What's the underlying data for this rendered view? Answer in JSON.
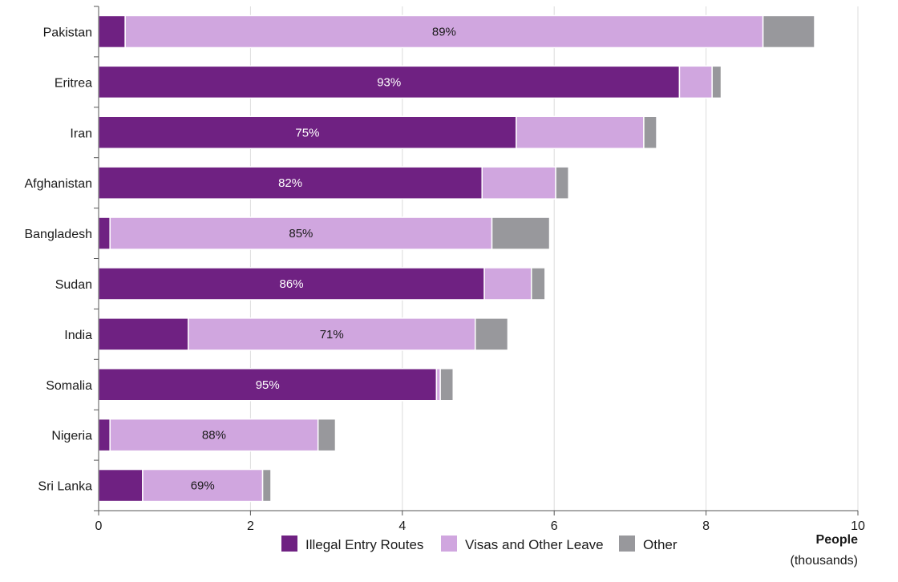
{
  "chart_data": {
    "type": "bar",
    "orientation": "horizontal",
    "stacked": true,
    "categories": [
      "Pakistan",
      "Eritrea",
      "Iran",
      "Afghanistan",
      "Bangladesh",
      "Sudan",
      "India",
      "Somalia",
      "Nigeria",
      "Sri Lanka"
    ],
    "series": [
      {
        "name": "Illegal Entry Routes",
        "color": "#6f2182",
        "values": [
          0.35,
          7.65,
          5.5,
          5.05,
          0.15,
          5.08,
          1.18,
          4.45,
          0.15,
          0.58
        ]
      },
      {
        "name": "Visas and Other Leave",
        "color": "#d0a6df",
        "values": [
          8.4,
          0.43,
          1.68,
          0.97,
          5.03,
          0.62,
          3.78,
          0.05,
          2.74,
          1.58
        ]
      },
      {
        "name": "Other",
        "color": "#98989c",
        "values": [
          0.68,
          0.12,
          0.17,
          0.17,
          0.76,
          0.18,
          0.43,
          0.17,
          0.23,
          0.11
        ]
      }
    ],
    "data_labels": [
      {
        "category": "Pakistan",
        "series": "Visas and Other Leave",
        "text": "89%"
      },
      {
        "category": "Eritrea",
        "series": "Illegal Entry Routes",
        "text": "93%"
      },
      {
        "category": "Iran",
        "series": "Illegal Entry Routes",
        "text": "75%"
      },
      {
        "category": "Afghanistan",
        "series": "Illegal Entry Routes",
        "text": "82%"
      },
      {
        "category": "Bangladesh",
        "series": "Visas and Other Leave",
        "text": "85%"
      },
      {
        "category": "Sudan",
        "series": "Illegal Entry Routes",
        "text": "86%"
      },
      {
        "category": "India",
        "series": "Visas and Other Leave",
        "text": "71%"
      },
      {
        "category": "Somalia",
        "series": "Illegal Entry Routes",
        "text": "95%"
      },
      {
        "category": "Nigeria",
        "series": "Visas and Other Leave",
        "text": "88%"
      },
      {
        "category": "Sri Lanka",
        "series": "Visas and Other Leave",
        "text": "69%"
      }
    ],
    "xlim": [
      0,
      10
    ],
    "xticks": [
      0,
      2,
      4,
      6,
      8,
      10
    ],
    "xlabel_line1": "People",
    "xlabel_line2": "(thousands)",
    "grid": "vertical",
    "legend_position": "bottom"
  }
}
